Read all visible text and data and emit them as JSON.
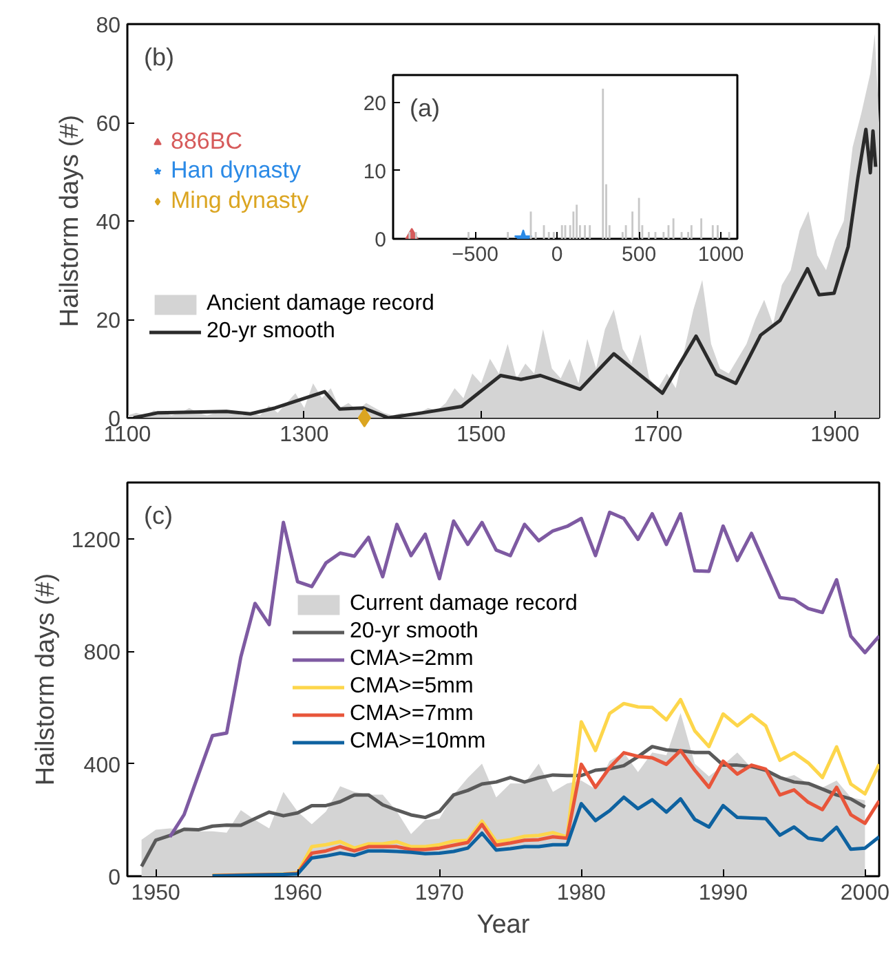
{
  "chart_data": [
    {
      "type": "area",
      "ylabel": "Hailstorm days (#)",
      "annotations": [
        "(b)"
      ],
      "xlim": [
        1100,
        1950
      ],
      "xticks": [
        1100,
        1300,
        1500,
        1700,
        1900
      ],
      "ylim": [
        0,
        80
      ],
      "yticks": [
        0,
        20,
        40,
        60,
        80
      ],
      "grid": false,
      "legend": "left",
      "series": [
        {
          "name": "Ancient damage record",
          "color": "#d4d4d4",
          "x": [
            1100,
            1110,
            1120,
            1130,
            1140,
            1150,
            1160,
            1170,
            1180,
            1190,
            1200,
            1210,
            1220,
            1230,
            1240,
            1250,
            1260,
            1270,
            1280,
            1290,
            1300,
            1310,
            1320,
            1330,
            1340,
            1350,
            1360,
            1370,
            1380,
            1390,
            1400,
            1410,
            1420,
            1430,
            1440,
            1450,
            1460,
            1470,
            1480,
            1490,
            1500,
            1510,
            1520,
            1530,
            1540,
            1550,
            1560,
            1570,
            1580,
            1590,
            1600,
            1610,
            1620,
            1630,
            1640,
            1650,
            1660,
            1670,
            1680,
            1690,
            1700,
            1710,
            1720,
            1730,
            1740,
            1750,
            1760,
            1770,
            1780,
            1790,
            1800,
            1810,
            1820,
            1830,
            1840,
            1850,
            1860,
            1870,
            1880,
            1890,
            1900,
            1910,
            1920,
            1930,
            1940,
            1945,
            1950
          ],
          "values": [
            0.5,
            1,
            0.5,
            1.5,
            1,
            0.5,
            1,
            2,
            1,
            0.5,
            1,
            1.5,
            1,
            0.5,
            1,
            0.5,
            2.5,
            1,
            3,
            5,
            2,
            7,
            4,
            6,
            2,
            3,
            1.5,
            3,
            2,
            1,
            0.5,
            1,
            0.5,
            1,
            2,
            1.5,
            3,
            6,
            4,
            9,
            7,
            12,
            9,
            15,
            8,
            11,
            9,
            18,
            10,
            8,
            12,
            7,
            16,
            10,
            18,
            22,
            14,
            11,
            17,
            8,
            6,
            9,
            6,
            14,
            22,
            28,
            15,
            10,
            9,
            12,
            15,
            20,
            24,
            19,
            27,
            30,
            38,
            42,
            33,
            30,
            36,
            40,
            55,
            62,
            70,
            78,
            60
          ]
        },
        {
          "type": "line",
          "name": "20-yr smooth",
          "color": "#2b2b2b",
          "x": [
            1107,
            1134,
            1212,
            1239,
            1267,
            1289,
            1323,
            1340,
            1367,
            1395,
            1433,
            1478,
            1522,
            1545,
            1567,
            1612,
            1650,
            1705,
            1743,
            1766,
            1788,
            1816,
            1838,
            1869,
            1882,
            1899,
            1915,
            1926,
            1935,
            1940,
            1943,
            1946
          ],
          "values": [
            0,
            1,
            1.3,
            0.8,
            2,
            3.3,
            5.3,
            1.8,
            2,
            0,
            1,
            2.3,
            8.6,
            7.8,
            8.6,
            5.8,
            13,
            5,
            16.6,
            8.8,
            7,
            16.8,
            19.8,
            30.3,
            25,
            25.3,
            34.8,
            48.8,
            58.6,
            49.8,
            58.3,
            51
          ]
        },
        {
          "type": "scatter",
          "name": "Ming dynasty",
          "color": "#dba521",
          "marker": "diamond",
          "x": [
            1368
          ],
          "values": [
            0
          ]
        }
      ]
    },
    {
      "type": "bar",
      "annotations": [
        "(a)"
      ],
      "xlim": [
        -1000,
        1100
      ],
      "xticks": [
        -500,
        0,
        500,
        1000
      ],
      "ylim": [
        0,
        24
      ],
      "yticks": [
        0,
        10,
        20
      ],
      "grid": false,
      "legend": "left",
      "series": [
        {
          "color": "#c8c8c8",
          "x": [
            -900,
            -860,
            -540,
            -300,
            -160,
            -130,
            -80,
            -50,
            -20,
            30,
            50,
            80,
            100,
            120,
            140,
            170,
            200,
            280,
            300,
            320,
            400,
            420,
            460,
            500,
            520,
            560,
            600,
            650,
            680,
            710,
            760,
            800,
            820,
            880,
            950,
            980,
            1050
          ],
          "values": [
            1,
            1,
            1,
            1,
            4,
            1,
            2,
            1,
            1,
            2,
            2,
            2,
            4,
            5,
            2,
            2,
            2,
            22,
            8,
            2,
            1,
            2,
            4,
            6,
            2,
            1,
            1,
            1,
            2,
            3,
            1,
            1,
            2,
            3,
            2,
            2,
            1
          ]
        },
        {
          "type": "scatter",
          "name": "886BC",
          "color": "#d65a5a",
          "marker": "triangle",
          "x": [
            -886
          ],
          "values": [
            0
          ]
        },
        {
          "type": "scatter",
          "name": "Han dynasty",
          "color": "#2b8ae6",
          "marker": "star",
          "x": [
            -206
          ],
          "values": [
            0
          ]
        }
      ]
    },
    {
      "type": "line",
      "xlabel": "Year",
      "ylabel": "Hailstorm days (#)",
      "annotations": [
        "(c)"
      ],
      "xlim": [
        1948,
        2001
      ],
      "xticks": [
        1950,
        1960,
        1970,
        1980,
        1990,
        2000
      ],
      "ylim": [
        0,
        1400
      ],
      "yticks": [
        0,
        400,
        800,
        1200
      ],
      "grid": false,
      "legend": "top left",
      "series": [
        {
          "type": "area",
          "name": "Current damage record",
          "color": "#d4d4d4",
          "x": [
            1949,
            1950,
            1951,
            1952,
            1953,
            1954,
            1955,
            1956,
            1957,
            1958,
            1959,
            1960,
            1961,
            1962,
            1963,
            1964,
            1965,
            1966,
            1967,
            1968,
            1969,
            1970,
            1971,
            1972,
            1973,
            1974,
            1975,
            1976,
            1977,
            1978,
            1979,
            1980,
            1981,
            1982,
            1983,
            1984,
            1985,
            1986,
            1987,
            1988,
            1989,
            1990,
            1991,
            1992,
            1993,
            1994,
            1995,
            1996,
            1997,
            1998,
            1999,
            2000
          ],
          "values": [
            130,
            165,
            170,
            165,
            160,
            160,
            155,
            235,
            200,
            170,
            300,
            230,
            185,
            230,
            320,
            300,
            290,
            290,
            230,
            150,
            200,
            205,
            290,
            350,
            400,
            280,
            330,
            330,
            400,
            300,
            330,
            340,
            310,
            410,
            440,
            370,
            440,
            430,
            580,
            400,
            355,
            395,
            440,
            385,
            385,
            345,
            360,
            330,
            315,
            340,
            280,
            270
          ]
        },
        {
          "name": "20-yr smooth",
          "color": "#5a5a5a",
          "x": [
            1949,
            1950,
            1951,
            1952,
            1953,
            1954,
            1955,
            1956,
            1957,
            1958,
            1959,
            1960,
            1961,
            1962,
            1963,
            1964,
            1965,
            1966,
            1967,
            1968,
            1969,
            1970,
            1971,
            1972,
            1973,
            1974,
            1975,
            1976,
            1977,
            1978,
            1979,
            1980,
            1981,
            1982,
            1983,
            1984,
            1985,
            1986,
            1987,
            1988,
            1989,
            1990,
            1991,
            1992,
            1993,
            1994,
            1995,
            1996,
            1997,
            1998,
            1999,
            2000
          ],
          "values": [
            35,
            128,
            145,
            167,
            165,
            178,
            182,
            181,
            205,
            228,
            215,
            225,
            251,
            251,
            265,
            289,
            289,
            254,
            235,
            218,
            209,
            230,
            289,
            305,
            328,
            335,
            351,
            335,
            350,
            360,
            358,
            358,
            377,
            382,
            393,
            425,
            461,
            449,
            446,
            440,
            440,
            395,
            395,
            390,
            377,
            351,
            335,
            330,
            310,
            289,
            275,
            246
          ]
        },
        {
          "name": "CMA>=2mm",
          "color": "#7e5aa2",
          "x": [
            1951,
            1952,
            1953,
            1954,
            1955,
            1956,
            1957,
            1958,
            1959,
            1960,
            1961,
            1962,
            1963,
            1964,
            1965,
            1966,
            1967,
            1968,
            1969,
            1970,
            1971,
            1972,
            1973,
            1974,
            1975,
            1976,
            1977,
            1978,
            1979,
            1980,
            1981,
            1982,
            1983,
            1984,
            1985,
            1986,
            1987,
            1988,
            1989,
            1990,
            1991,
            1992,
            1993,
            1994,
            1995,
            1996,
            1997,
            1998,
            1999,
            2000,
            2001
          ],
          "values": [
            140,
            219,
            360,
            500,
            509,
            780,
            970,
            895,
            1258,
            1047,
            1030,
            1114,
            1149,
            1138,
            1205,
            1065,
            1251,
            1140,
            1216,
            1058,
            1263,
            1180,
            1258,
            1160,
            1140,
            1251,
            1193,
            1228,
            1244,
            1272,
            1140,
            1294,
            1272,
            1198,
            1289,
            1180,
            1289,
            1086,
            1084,
            1245,
            1123,
            1219,
            1105,
            991,
            984,
            952,
            938,
            1054,
            854,
            795,
            854
          ]
        },
        {
          "name": "CMA>=5mm",
          "color": "#fdd64b",
          "x": [
            1954,
            1955,
            1956,
            1957,
            1958,
            1959,
            1960,
            1961,
            1962,
            1963,
            1964,
            1965,
            1966,
            1967,
            1968,
            1969,
            1970,
            1971,
            1972,
            1973,
            1974,
            1975,
            1976,
            1977,
            1978,
            1979,
            1980,
            1981,
            1982,
            1983,
            1984,
            1985,
            1986,
            1987,
            1988,
            1989,
            1990,
            1991,
            1992,
            1993,
            1994,
            1995,
            1996,
            1997,
            1998,
            1999,
            2000,
            2001
          ],
          "values": [
            3,
            4,
            5,
            6,
            7,
            8,
            12,
            105,
            112,
            123,
            100,
            115,
            115,
            123,
            105,
            105,
            112,
            125,
            128,
            196,
            123,
            130,
            142,
            145,
            155,
            140,
            549,
            447,
            579,
            614,
            602,
            600,
            556,
            628,
            517,
            461,
            577,
            535,
            574,
            535,
            412,
            439,
            403,
            351,
            460,
            328,
            293,
            398
          ]
        },
        {
          "name": "CMA>=7mm",
          "color": "#e8553a",
          "x": [
            1954,
            1955,
            1956,
            1957,
            1958,
            1959,
            1960,
            1961,
            1962,
            1963,
            1964,
            1965,
            1966,
            1967,
            1968,
            1969,
            1970,
            1971,
            1972,
            1973,
            1974,
            1975,
            1976,
            1977,
            1978,
            1979,
            1980,
            1981,
            1982,
            1983,
            1984,
            1985,
            1986,
            1987,
            1988,
            1989,
            1990,
            1991,
            1992,
            1993,
            1994,
            1995,
            1996,
            1997,
            1998,
            1999,
            2000,
            2001
          ],
          "values": [
            2,
            3,
            4,
            5,
            6,
            7,
            10,
            82,
            90,
            105,
            90,
            105,
            105,
            105,
            95,
            95,
            100,
            110,
            120,
            184,
            110,
            118,
            128,
            130,
            140,
            135,
            398,
            316,
            386,
            439,
            426,
            421,
            398,
            447,
            377,
            316,
            409,
            363,
            395,
            381,
            289,
            307,
            263,
            237,
            316,
            219,
            188,
            268
          ]
        },
        {
          "name": "CMA>=10mm",
          "color": "#0e62a0",
          "x": [
            1954,
            1955,
            1956,
            1957,
            1958,
            1959,
            1960,
            1961,
            1962,
            1963,
            1964,
            1965,
            1966,
            1967,
            1968,
            1969,
            1970,
            1971,
            1972,
            1973,
            1974,
            1975,
            1976,
            1977,
            1978,
            1979,
            1980,
            1981,
            1982,
            1983,
            1984,
            1985,
            1986,
            1987,
            1988,
            1989,
            1990,
            1991,
            1992,
            1993,
            1994,
            1995,
            1996,
            1997,
            1998,
            1999,
            2000,
            2001
          ],
          "values": [
            1,
            2,
            3,
            4,
            5,
            6,
            8,
            65,
            72,
            82,
            74,
            90,
            90,
            88,
            85,
            80,
            82,
            88,
            100,
            153,
            93,
            98,
            105,
            105,
            112,
            112,
            258,
            198,
            233,
            281,
            240,
            272,
            228,
            275,
            202,
            175,
            251,
            209,
            207,
            205,
            146,
            175,
            135,
            128,
            174,
            96,
            100,
            140
          ]
        }
      ]
    }
  ]
}
